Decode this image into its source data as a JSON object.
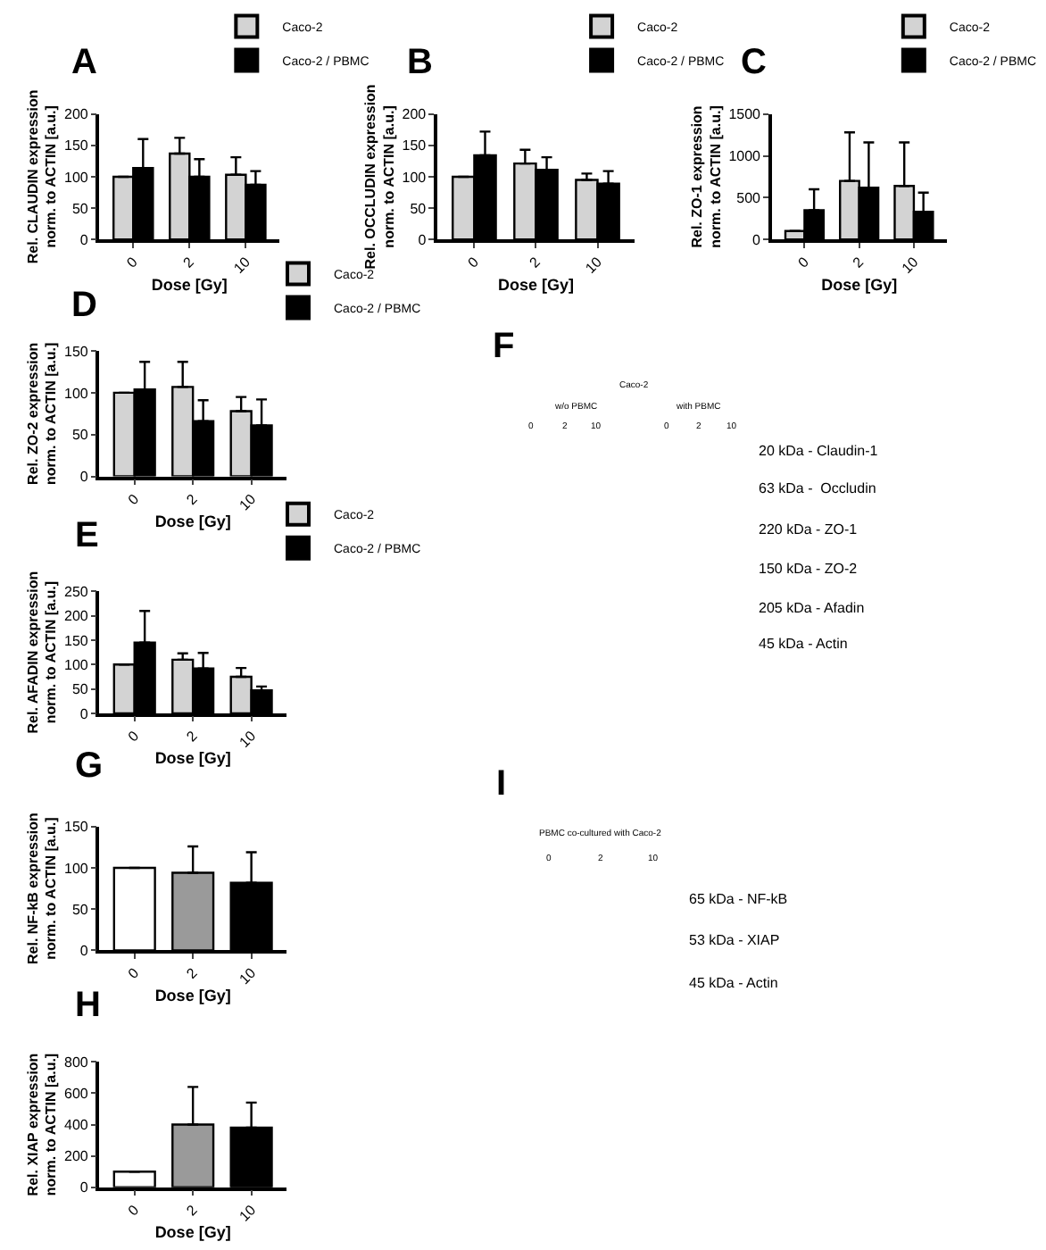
{
  "chart_data": [
    {
      "type": "bar",
      "title": "A",
      "xlabel": "Dose [Gy]",
      "ylabel": "Rel. CLAUDIN expression\nnorm. to ACTIN [a.u.]",
      "categories": [
        "0",
        "2",
        "10"
      ],
      "ylim": [
        0,
        200
      ],
      "yticks": [
        0,
        50,
        100,
        150,
        200
      ],
      "legend": "top right",
      "series": [
        {
          "name": "Caco-2",
          "color": "#d3d3d3",
          "values": [
            100,
            137,
            103
          ],
          "errors": [
            null,
            [
              137,
              162
            ],
            [
              103,
              131
            ]
          ]
        },
        {
          "name": "Caco-2 / PBMC",
          "color": "#000000",
          "values": [
            114,
            100,
            87
          ],
          "errors": [
            [
              114,
              160
            ],
            [
              100,
              128
            ],
            [
              87,
              109
            ]
          ]
        }
      ]
    },
    {
      "type": "bar",
      "title": "B",
      "xlabel": "Dose [Gy]",
      "ylabel": "Rel. OCCLUDIN expression\nnorm. to ACTIN [a.u.]",
      "categories": [
        "0",
        "2",
        "10"
      ],
      "ylim": [
        0,
        200
      ],
      "yticks": [
        0,
        50,
        100,
        150,
        200
      ],
      "legend": "top right",
      "series": [
        {
          "name": "Caco-2",
          "color": "#d3d3d3",
          "values": [
            100,
            121,
            95
          ],
          "errors": [
            null,
            [
              121,
              143
            ],
            [
              95,
              105
            ]
          ]
        },
        {
          "name": "Caco-2 / PBMC",
          "color": "#000000",
          "values": [
            134,
            111,
            89
          ],
          "errors": [
            [
              134,
              172
            ],
            [
              111,
              131
            ],
            [
              89,
              109
            ]
          ]
        }
      ]
    },
    {
      "type": "bar",
      "title": "C",
      "xlabel": "Dose [Gy]",
      "ylabel": "Rel. ZO-1 expression\nnorm. to ACTIN [a.u.]",
      "categories": [
        "0",
        "2",
        "10"
      ],
      "ylim": [
        0,
        1500
      ],
      "yticks": [
        0,
        500,
        1000,
        1500
      ],
      "legend": "top right",
      "series": [
        {
          "name": "Caco-2",
          "color": "#d3d3d3",
          "values": [
            100,
            700,
            640
          ],
          "errors": [
            null,
            [
              700,
              1280
            ],
            [
              640,
              1160
            ]
          ]
        },
        {
          "name": "Caco-2 / PBMC",
          "color": "#000000",
          "values": [
            350,
            620,
            330
          ],
          "errors": [
            [
              350,
              600
            ],
            [
              620,
              1160
            ],
            [
              330,
              560
            ]
          ]
        }
      ]
    },
    {
      "type": "bar",
      "title": "D",
      "xlabel": "Dose [Gy]",
      "ylabel": "Rel. ZO-2 expression\nnorm. to ACTIN [a.u.]",
      "categories": [
        "0",
        "2",
        "10"
      ],
      "ylim": [
        0,
        150
      ],
      "yticks": [
        0,
        50,
        100,
        150
      ],
      "legend": "top right",
      "series": [
        {
          "name": "Caco-2",
          "color": "#d3d3d3",
          "values": [
            100,
            107,
            78
          ],
          "errors": [
            null,
            [
              107,
              137
            ],
            [
              78,
              95
            ]
          ]
        },
        {
          "name": "Caco-2 / PBMC",
          "color": "#000000",
          "values": [
            104,
            66,
            61
          ],
          "errors": [
            [
              104,
              137
            ],
            [
              66,
              91
            ],
            [
              61,
              92
            ]
          ]
        }
      ]
    },
    {
      "type": "bar",
      "title": "E",
      "xlabel": "Dose [Gy]",
      "ylabel": "Rel. AFADIN expression\nnorm. to ACTIN [a.u.]",
      "categories": [
        "0",
        "2",
        "10"
      ],
      "ylim": [
        0,
        250
      ],
      "yticks": [
        0,
        50,
        100,
        150,
        200,
        250
      ],
      "legend": "top right",
      "series": [
        {
          "name": "Caco-2",
          "color": "#d3d3d3",
          "values": [
            100,
            110,
            75
          ],
          "errors": [
            null,
            [
              110,
              123
            ],
            [
              75,
              93
            ]
          ]
        },
        {
          "name": "Caco-2 / PBMC",
          "color": "#000000",
          "values": [
            145,
            92,
            47
          ],
          "errors": [
            [
              145,
              210
            ],
            [
              92,
              124
            ],
            [
              47,
              55
            ]
          ]
        }
      ]
    },
    {
      "type": "other",
      "title": "F",
      "annotations": [
        "Caco-2",
        "w/o PBMC",
        "with PBMC",
        "0",
        "2",
        "10",
        "0",
        "2",
        "10",
        "20 kDa - Claudin-1",
        "63 kDa -  Occludin",
        "220 kDa - ZO-1",
        "150 kDa - ZO-2",
        "205 kDa - Afadin",
        "45 kDa - Actin"
      ]
    },
    {
      "type": "bar",
      "title": "G",
      "xlabel": "Dose [Gy]",
      "ylabel": "Rel. NF-kB expression\nnorm. to ACTIN [a.u.]",
      "categories": [
        "0",
        "2",
        "10"
      ],
      "ylim": [
        0,
        150
      ],
      "yticks": [
        0,
        50,
        100,
        150
      ],
      "values": [
        100,
        94,
        82
      ],
      "colors": [
        "#ffffff",
        "#9a9a9a",
        "#000000"
      ],
      "errors": [
        null,
        [
          94,
          126
        ],
        [
          82,
          119
        ]
      ]
    },
    {
      "type": "bar",
      "title": "H",
      "xlabel": "Dose [Gy]",
      "ylabel": "Rel. XIAP expression\nnorm. to ACTIN [a.u.]",
      "categories": [
        "0",
        "2",
        "10"
      ],
      "ylim": [
        0,
        800
      ],
      "yticks": [
        0,
        200,
        400,
        600,
        800
      ],
      "values": [
        100,
        400,
        380
      ],
      "colors": [
        "#ffffff",
        "#9a9a9a",
        "#000000"
      ],
      "errors": [
        null,
        [
          400,
          640
        ],
        [
          380,
          540
        ]
      ]
    },
    {
      "type": "other",
      "title": "I",
      "annotations": [
        "PBMC co-cultured with Caco-2",
        "0",
        "2",
        "10",
        "65 kDa - NF-kB",
        "53 kDa - XIAP",
        "45 kDa - Actin"
      ]
    }
  ]
}
